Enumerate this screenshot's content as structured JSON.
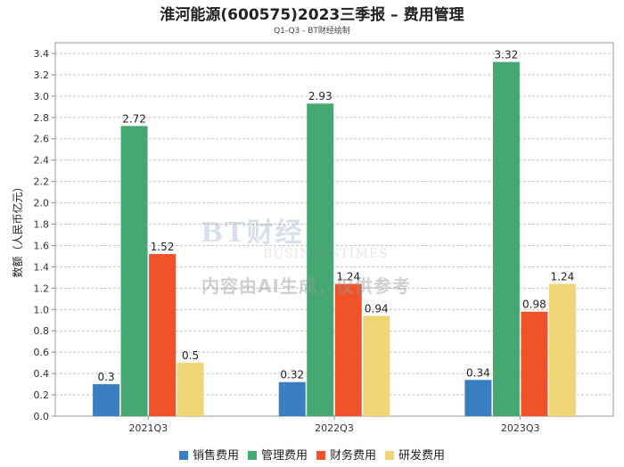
{
  "chart_data": {
    "type": "bar",
    "title": "淮河能源(600575)2023三季报 – 费用管理",
    "subtitle": "Q1-Q3 - BT财经绘制",
    "xlabel": "",
    "ylabel": "数额（人民币亿元）",
    "categories": [
      "2021Q3",
      "2022Q3",
      "2023Q3"
    ],
    "series": [
      {
        "name": "销售费用",
        "color": "#3a7fc1",
        "values": [
          0.3,
          0.32,
          0.34
        ],
        "labels": [
          "0.3",
          "0.32",
          "0.34"
        ]
      },
      {
        "name": "管理费用",
        "color": "#45a872",
        "values": [
          2.72,
          2.93,
          3.32
        ],
        "labels": [
          "2.72",
          "2.93",
          "3.32"
        ]
      },
      {
        "name": "财务费用",
        "color": "#f0532a",
        "values": [
          1.52,
          1.24,
          0.98
        ],
        "labels": [
          "1.52",
          "1.24",
          "0.98"
        ]
      },
      {
        "name": "研发费用",
        "color": "#efd576",
        "values": [
          0.5,
          0.94,
          1.24
        ],
        "labels": [
          "0.5",
          "0.94",
          "1.24"
        ]
      }
    ],
    "ylim": [
      0,
      3.5
    ],
    "yticks": [
      "0.0",
      "0.2",
      "0.4",
      "0.6",
      "0.8",
      "1.0",
      "1.2",
      "1.4",
      "1.6",
      "1.8",
      "2.0",
      "2.2",
      "2.4",
      "2.6",
      "2.8",
      "3.0",
      "3.2",
      "3.4"
    ],
    "grid": true,
    "legend": "bottom"
  },
  "watermark": {
    "brand": "BT财经",
    "sub": "BUSINESSTIMES",
    "note": "内容由AI生成，仅供参考"
  }
}
